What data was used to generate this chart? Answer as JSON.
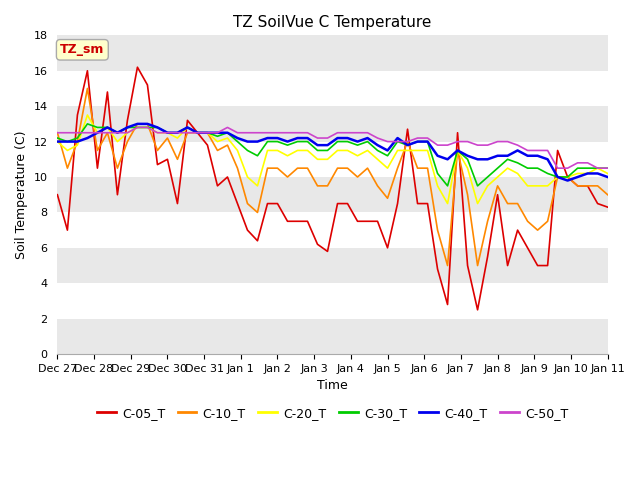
{
  "title": "TZ SoilVue C Temperature",
  "xlabel": "Time",
  "ylabel": "Soil Temperature (C)",
  "ylim": [
    0,
    18
  ],
  "xlim": [
    0,
    15
  ],
  "tick_labels": [
    "Dec 27",
    "Dec 28",
    "Dec 29",
    "Dec 30",
    "Dec 31",
    "Jan 1",
    "Jan 2",
    "Jan 3",
    "Jan 4",
    "Jan 5",
    "Jan 6",
    "Jan 7",
    "Jan 8",
    "Jan 9",
    "Jan 10",
    "Jan 11"
  ],
  "annotation_text": "TZ_sm",
  "annotation_color": "#cc0000",
  "annotation_bg": "#ffffcc",
  "annotation_border": "#aaaaaa",
  "series": {
    "C-05_T": {
      "color": "#dd0000",
      "linewidth": 1.2,
      "values": [
        9.0,
        7.0,
        13.5,
        16.0,
        10.5,
        14.8,
        9.0,
        13.2,
        16.2,
        15.2,
        10.7,
        11.0,
        8.5,
        13.2,
        12.5,
        11.8,
        9.5,
        10.0,
        8.5,
        7.0,
        6.4,
        8.5,
        8.5,
        7.5,
        7.5,
        7.5,
        6.2,
        5.8,
        8.5,
        8.5,
        7.5,
        7.5,
        7.5,
        6.0,
        8.5,
        12.7,
        8.5,
        8.5,
        4.8,
        2.8,
        12.5,
        5.0,
        2.5,
        5.5,
        9.0,
        5.0,
        7.0,
        6.0,
        5.0,
        5.0,
        11.5,
        10.0,
        9.5,
        9.5,
        8.5,
        8.3
      ]
    },
    "C-10_T": {
      "color": "#ff8800",
      "linewidth": 1.2,
      "values": [
        12.5,
        10.5,
        12.0,
        15.0,
        11.5,
        12.5,
        10.5,
        12.0,
        13.0,
        13.0,
        11.5,
        12.2,
        11.0,
        12.5,
        12.5,
        12.5,
        11.5,
        11.8,
        10.5,
        8.5,
        8.0,
        10.5,
        10.5,
        10.0,
        10.5,
        10.5,
        9.5,
        9.5,
        10.5,
        10.5,
        10.0,
        10.5,
        9.5,
        8.8,
        10.5,
        12.0,
        10.5,
        10.5,
        7.0,
        5.0,
        11.5,
        9.0,
        5.0,
        7.5,
        9.5,
        8.5,
        8.5,
        7.5,
        7.0,
        7.5,
        10.0,
        10.0,
        9.5,
        9.5,
        9.5,
        9.0
      ]
    },
    "C-20_T": {
      "color": "#ffff00",
      "linewidth": 1.2,
      "values": [
        12.0,
        11.5,
        11.8,
        13.5,
        12.5,
        12.8,
        12.0,
        12.5,
        12.8,
        12.8,
        12.5,
        12.5,
        12.2,
        12.8,
        12.5,
        12.5,
        12.0,
        12.2,
        11.5,
        10.0,
        9.5,
        11.5,
        11.5,
        11.2,
        11.5,
        11.5,
        11.0,
        11.0,
        11.5,
        11.5,
        11.2,
        11.5,
        11.0,
        10.5,
        11.5,
        11.5,
        11.5,
        11.5,
        9.5,
        8.5,
        11.5,
        10.5,
        8.5,
        9.5,
        10.0,
        10.5,
        10.2,
        9.5,
        9.5,
        9.5,
        10.0,
        10.0,
        10.2,
        10.2,
        10.5,
        10.2
      ]
    },
    "C-30_T": {
      "color": "#00cc00",
      "linewidth": 1.2,
      "values": [
        12.2,
        12.0,
        12.2,
        13.0,
        12.8,
        12.8,
        12.5,
        12.8,
        12.8,
        12.8,
        12.8,
        12.5,
        12.5,
        12.8,
        12.5,
        12.5,
        12.3,
        12.5,
        12.0,
        11.5,
        11.2,
        12.0,
        12.0,
        11.8,
        12.0,
        12.0,
        11.5,
        11.5,
        12.0,
        12.0,
        11.8,
        12.0,
        11.5,
        11.2,
        12.0,
        11.8,
        12.0,
        12.0,
        10.2,
        9.5,
        11.5,
        11.0,
        9.5,
        10.0,
        10.5,
        11.0,
        10.8,
        10.5,
        10.5,
        10.2,
        10.0,
        10.0,
        10.5,
        10.5,
        10.5,
        10.5
      ]
    },
    "C-40_T": {
      "color": "#0000ee",
      "linewidth": 1.8,
      "values": [
        12.0,
        12.0,
        12.0,
        12.2,
        12.5,
        12.8,
        12.5,
        12.8,
        13.0,
        13.0,
        12.8,
        12.5,
        12.5,
        12.8,
        12.5,
        12.5,
        12.5,
        12.5,
        12.2,
        12.0,
        12.0,
        12.2,
        12.2,
        12.0,
        12.2,
        12.2,
        11.8,
        11.8,
        12.2,
        12.2,
        12.0,
        12.2,
        11.8,
        11.5,
        12.2,
        11.8,
        12.0,
        12.0,
        11.2,
        11.0,
        11.5,
        11.2,
        11.0,
        11.0,
        11.2,
        11.2,
        11.5,
        11.2,
        11.2,
        11.0,
        10.0,
        9.8,
        10.0,
        10.2,
        10.2,
        10.0
      ]
    },
    "C-50_T": {
      "color": "#cc44cc",
      "linewidth": 1.2,
      "values": [
        12.5,
        12.5,
        12.5,
        12.5,
        12.5,
        12.5,
        12.5,
        12.5,
        12.8,
        12.8,
        12.5,
        12.5,
        12.5,
        12.5,
        12.5,
        12.5,
        12.5,
        12.8,
        12.5,
        12.5,
        12.5,
        12.5,
        12.5,
        12.5,
        12.5,
        12.5,
        12.2,
        12.2,
        12.5,
        12.5,
        12.5,
        12.5,
        12.2,
        12.0,
        12.0,
        12.0,
        12.2,
        12.2,
        11.8,
        11.8,
        12.0,
        12.0,
        11.8,
        11.8,
        12.0,
        12.0,
        11.8,
        11.5,
        11.5,
        11.5,
        10.5,
        10.5,
        10.8,
        10.8,
        10.5,
        10.5
      ]
    }
  },
  "fig_bg_color": "#ffffff",
  "plot_bg_color": "#ffffff",
  "band_colors": [
    "#e8e8e8",
    "#ffffff"
  ],
  "grid_yticks": [
    0,
    2,
    4,
    6,
    8,
    10,
    12,
    14,
    16,
    18
  ],
  "title_fontsize": 11,
  "axis_label_fontsize": 9,
  "tick_fontsize": 8,
  "legend_fontsize": 9
}
